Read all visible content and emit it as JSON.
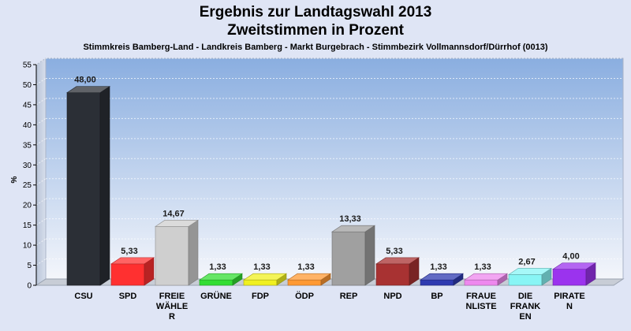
{
  "chart_data": {
    "type": "bar",
    "title_line1": "Ergebnis zur Landtagswahl 2013",
    "title_line2": "Zweitstimmen in Prozent",
    "subtitle": "Stimmkreis Bamberg-Land - Landkreis Bamberg - Markt Burgebrach - Stimmbezirk Vollmannsdorf/Dürrhof (0013)",
    "ylabel": "%",
    "ylim": [
      0,
      55
    ],
    "yticks": [
      0,
      5,
      10,
      15,
      20,
      25,
      30,
      35,
      40,
      45,
      50,
      55
    ],
    "grid": true,
    "categories": [
      [
        "CSU"
      ],
      [
        "SPD"
      ],
      [
        "FREIE",
        "WÄHLE",
        "R"
      ],
      [
        "GRÜNE"
      ],
      [
        "FDP"
      ],
      [
        "ÖDP"
      ],
      [
        "REP"
      ],
      [
        "NPD"
      ],
      [
        "BP"
      ],
      [
        "FRAUE",
        "NLISTE"
      ],
      [
        "DIE",
        "FRANK",
        "EN"
      ],
      [
        "PIRATE",
        "N"
      ]
    ],
    "values": [
      48.0,
      5.33,
      14.67,
      1.33,
      1.33,
      1.33,
      13.33,
      5.33,
      1.33,
      1.33,
      2.67,
      4.0
    ],
    "value_labels": [
      "48,00",
      "5,33",
      "14,67",
      "1,33",
      "1,33",
      "1,33",
      "13,33",
      "5,33",
      "1,33",
      "1,33",
      "2,67",
      "4,00"
    ],
    "colors": [
      "#2b2f36",
      "#ff3030",
      "#cfcfcf",
      "#33dd33",
      "#f0f020",
      "#ff9933",
      "#a0a0a0",
      "#a83232",
      "#2e3ab0",
      "#ee88ee",
      "#88f5f5",
      "#9b33ee"
    ]
  }
}
